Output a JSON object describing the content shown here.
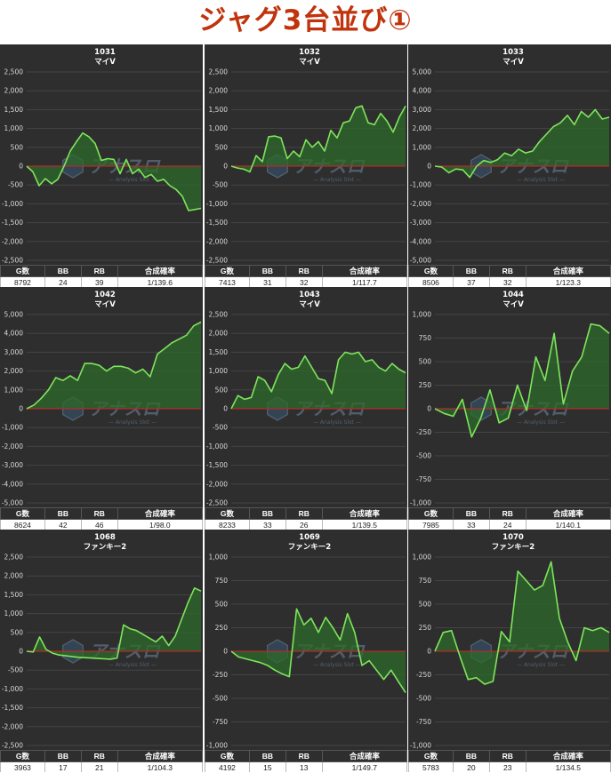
{
  "page": {
    "title": "ジャグ3台並び①"
  },
  "stats_headers": [
    "G数",
    "BB",
    "RB",
    "合成確率"
  ],
  "watermark": {
    "text": "アナスロ",
    "subtext": "Analysis Slot",
    "icon": "hexagon-logo-icon"
  },
  "colors": {
    "line": "#7ee55c",
    "fill": "#2e6a2a",
    "zero_line": "#b52a2a",
    "background": "#2e2e2e",
    "grid": "#444444",
    "title": "#c0330c"
  },
  "chart_data": [
    {
      "type": "area",
      "title": "1031",
      "subtitle": "マイV",
      "ylim": [
        -2500,
        2500
      ],
      "yticks": [
        2500,
        2000,
        1500,
        1000,
        500,
        0,
        -500,
        -1000,
        -1500,
        -2000,
        -2500
      ],
      "values": [
        0,
        -150,
        -520,
        -330,
        -470,
        -350,
        0,
        400,
        650,
        880,
        780,
        600,
        150,
        200,
        180,
        -200,
        180,
        -200,
        -80,
        -300,
        -220,
        -400,
        -350,
        -520,
        -620,
        -800,
        -1180,
        -1150,
        -1120
      ],
      "stats": {
        "games": "8792",
        "bb": "24",
        "rb": "39",
        "rate": "1/139.6"
      }
    },
    {
      "type": "area",
      "title": "1032",
      "subtitle": "マイV",
      "ylim": [
        -2500,
        2500
      ],
      "yticks": [
        2500,
        2000,
        1500,
        1000,
        500,
        0,
        -500,
        -1000,
        -1500,
        -2000,
        -2500
      ],
      "values": [
        0,
        -50,
        -80,
        -150,
        280,
        120,
        780,
        800,
        750,
        200,
        400,
        250,
        700,
        500,
        650,
        400,
        950,
        750,
        1150,
        1200,
        1550,
        1600,
        1150,
        1100,
        1400,
        1200,
        900,
        1300,
        1600
      ],
      "stats": {
        "games": "7413",
        "bb": "31",
        "rb": "32",
        "rate": "1/117.7"
      }
    },
    {
      "type": "area",
      "title": "1033",
      "subtitle": "マイV",
      "ylim": [
        -5000,
        5000
      ],
      "yticks": [
        5000,
        4000,
        3000,
        2000,
        1000,
        0,
        -1000,
        -2000,
        -3000,
        -4000,
        -5000
      ],
      "values": [
        0,
        -50,
        -350,
        -150,
        -200,
        -600,
        0,
        300,
        200,
        350,
        700,
        550,
        900,
        700,
        800,
        1300,
        1700,
        2100,
        2300,
        2700,
        2200,
        2900,
        2600,
        3000,
        2500,
        2600
      ],
      "stats": {
        "games": "8506",
        "bb": "37",
        "rb": "32",
        "rate": "1/123.3"
      }
    },
    {
      "type": "area",
      "title": "1042",
      "subtitle": "マイV",
      "ylim": [
        -5000,
        5000
      ],
      "yticks": [
        5000,
        4000,
        3000,
        2000,
        1000,
        0,
        -1000,
        -2000,
        -3000,
        -4000,
        -5000
      ],
      "values": [
        0,
        200,
        550,
        1000,
        1650,
        1500,
        1750,
        1500,
        2400,
        2400,
        2300,
        2000,
        2250,
        2250,
        2150,
        1900,
        2100,
        1700,
        2900,
        3200,
        3500,
        3700,
        3900,
        4400,
        4600
      ],
      "stats": {
        "games": "8624",
        "bb": "42",
        "rb": "46",
        "rate": "1/98.0"
      }
    },
    {
      "type": "area",
      "title": "1043",
      "subtitle": "マイV",
      "ylim": [
        -2500,
        2500
      ],
      "yticks": [
        2500,
        2000,
        1500,
        1000,
        500,
        0,
        -500,
        -1000,
        -1500,
        -2000,
        -2500
      ],
      "values": [
        0,
        350,
        250,
        300,
        850,
        750,
        450,
        900,
        1200,
        1050,
        1100,
        1400,
        1100,
        800,
        750,
        400,
        1300,
        1500,
        1450,
        1500,
        1250,
        1300,
        1100,
        1000,
        1200,
        1050,
        950
      ],
      "stats": {
        "games": "8233",
        "bb": "33",
        "rb": "26",
        "rate": "1/139.5"
      }
    },
    {
      "type": "area",
      "title": "1044",
      "subtitle": "マイV",
      "ylim": [
        -1000,
        1000
      ],
      "yticks": [
        1000,
        750,
        500,
        250,
        0,
        -250,
        -500,
        -750,
        -1000
      ],
      "values": [
        0,
        -50,
        -80,
        100,
        -300,
        -100,
        200,
        -150,
        -100,
        250,
        -20,
        550,
        300,
        800,
        50,
        400,
        550,
        900,
        880,
        800
      ],
      "stats": {
        "games": "7985",
        "bb": "33",
        "rb": "24",
        "rate": "1/140.1"
      }
    },
    {
      "type": "area",
      "title": "1068",
      "subtitle": "ファンキー2",
      "ylim": [
        -2500,
        2500
      ],
      "yticks": [
        2500,
        2000,
        1500,
        1000,
        500,
        0,
        -500,
        -1000,
        -1500,
        -2000,
        -2500
      ],
      "values": [
        0,
        -20,
        380,
        50,
        -50,
        -100,
        -120,
        -140,
        -160,
        -170,
        -180,
        -190,
        -200,
        -210,
        -180,
        700,
        600,
        550,
        450,
        350,
        250,
        400,
        150,
        400,
        850,
        1300,
        1680,
        1600
      ],
      "stats": {
        "games": "3963",
        "bb": "17",
        "rb": "21",
        "rate": "1/104.3"
      }
    },
    {
      "type": "area",
      "title": "1069",
      "subtitle": "ファンキー2",
      "ylim": [
        -1000,
        1000
      ],
      "yticks": [
        1000,
        750,
        500,
        250,
        0,
        -250,
        -500,
        -750,
        -1000
      ],
      "values": [
        0,
        -60,
        -80,
        -100,
        -120,
        -150,
        -200,
        -240,
        -270,
        450,
        280,
        350,
        200,
        360,
        250,
        120,
        400,
        200,
        -150,
        -100,
        -200,
        -300,
        -200,
        -320,
        -440
      ],
      "stats": {
        "games": "4192",
        "bb": "15",
        "rb": "13",
        "rate": "1/149.7"
      }
    },
    {
      "type": "area",
      "title": "1070",
      "subtitle": "ファンキー2",
      "ylim": [
        -1000,
        1000
      ],
      "yticks": [
        1000,
        750,
        500,
        250,
        0,
        -250,
        -500,
        -750,
        -1000
      ],
      "values": [
        0,
        200,
        220,
        -50,
        -300,
        -280,
        -350,
        -320,
        210,
        100,
        850,
        750,
        650,
        700,
        950,
        350,
        100,
        -100,
        250,
        220,
        250,
        200
      ],
      "stats": {
        "games": "5783",
        "bb": "20",
        "rb": "23",
        "rate": "1/134.5"
      }
    }
  ]
}
